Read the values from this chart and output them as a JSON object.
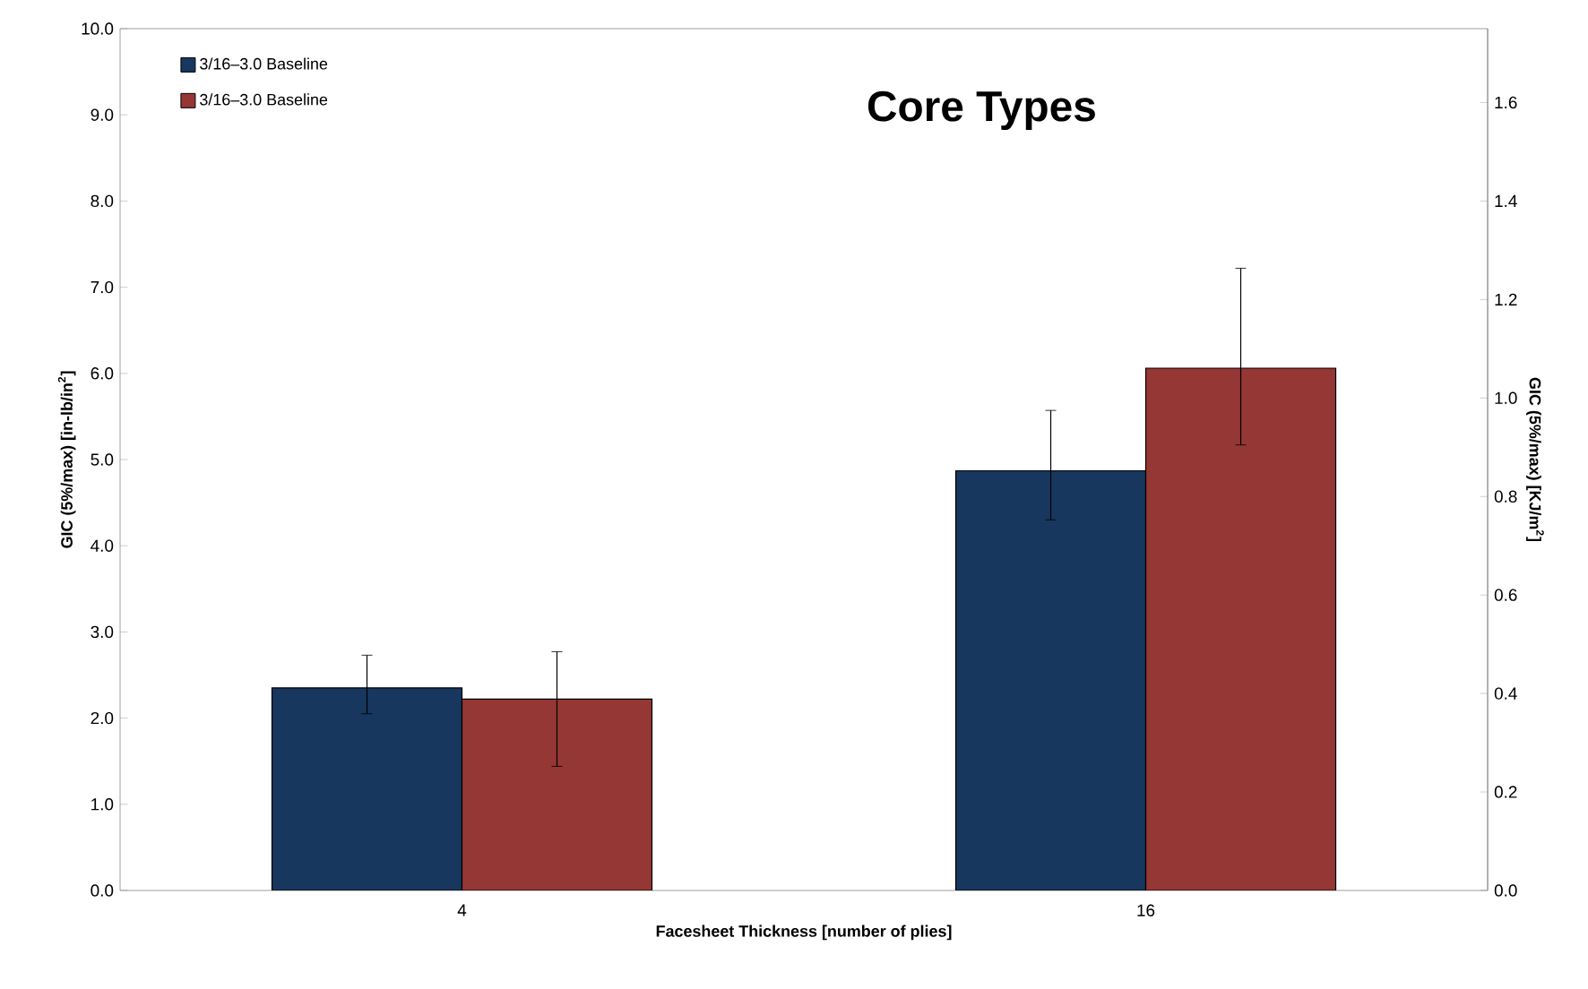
{
  "chart_data": {
    "type": "bar",
    "title": "Core Types",
    "xlabel": "Facesheet Thickness [number of plies]",
    "ylabel": "GIC (5%/max)  [in-lb/in$^{2}$]",
    "y2label": "GIC (5%/max) [KJ/m$^{2}$]",
    "categories": [
      "4",
      "16"
    ],
    "series": [
      {
        "name": "3/16–3.0 Baseline",
        "color": "#17375e",
        "values": [
          2.35,
          4.87
        ],
        "errors": [
          [
            2.05,
            2.73
          ],
          [
            4.3,
            5.57
          ]
        ]
      },
      {
        "name": "3/16–3.0 Baseline",
        "color": "#953735",
        "values": [
          2.22,
          6.06
        ],
        "errors": [
          [
            1.44,
            2.77
          ],
          [
            5.17,
            7.22
          ]
        ]
      }
    ],
    "ylim": [
      0,
      10
    ],
    "yticks": [
      {
        "value": 0,
        "label": "0.0"
      },
      {
        "value": 1,
        "label": "1.0"
      },
      {
        "value": 2,
        "label": "2.0"
      },
      {
        "value": 3,
        "label": "3.0"
      },
      {
        "value": 4,
        "label": "4.0"
      },
      {
        "value": 5,
        "label": "5.0"
      },
      {
        "value": 6,
        "label": "6.0"
      },
      {
        "value": 7,
        "label": "7.0"
      },
      {
        "value": 8,
        "label": "8.0"
      },
      {
        "value": 9,
        "label": "9.0"
      },
      {
        "value": 10,
        "label": "10.0"
      }
    ],
    "y2lim": [
      0,
      1.75
    ],
    "y2ticks": [
      {
        "value": 0,
        "label": "0.0"
      },
      {
        "value": 0.2,
        "label": "0.2"
      },
      {
        "value": 0.4,
        "label": "0.4"
      },
      {
        "value": 0.6,
        "label": "0.6"
      },
      {
        "value": 0.8,
        "label": "0.8"
      },
      {
        "value": 1,
        "label": "1.0"
      },
      {
        "value": 1.2,
        "label": "1.2"
      },
      {
        "value": 1.4,
        "label": "1.4"
      },
      {
        "value": 1.6,
        "label": "1.6"
      }
    ],
    "legend": "top left",
    "grid": false
  }
}
